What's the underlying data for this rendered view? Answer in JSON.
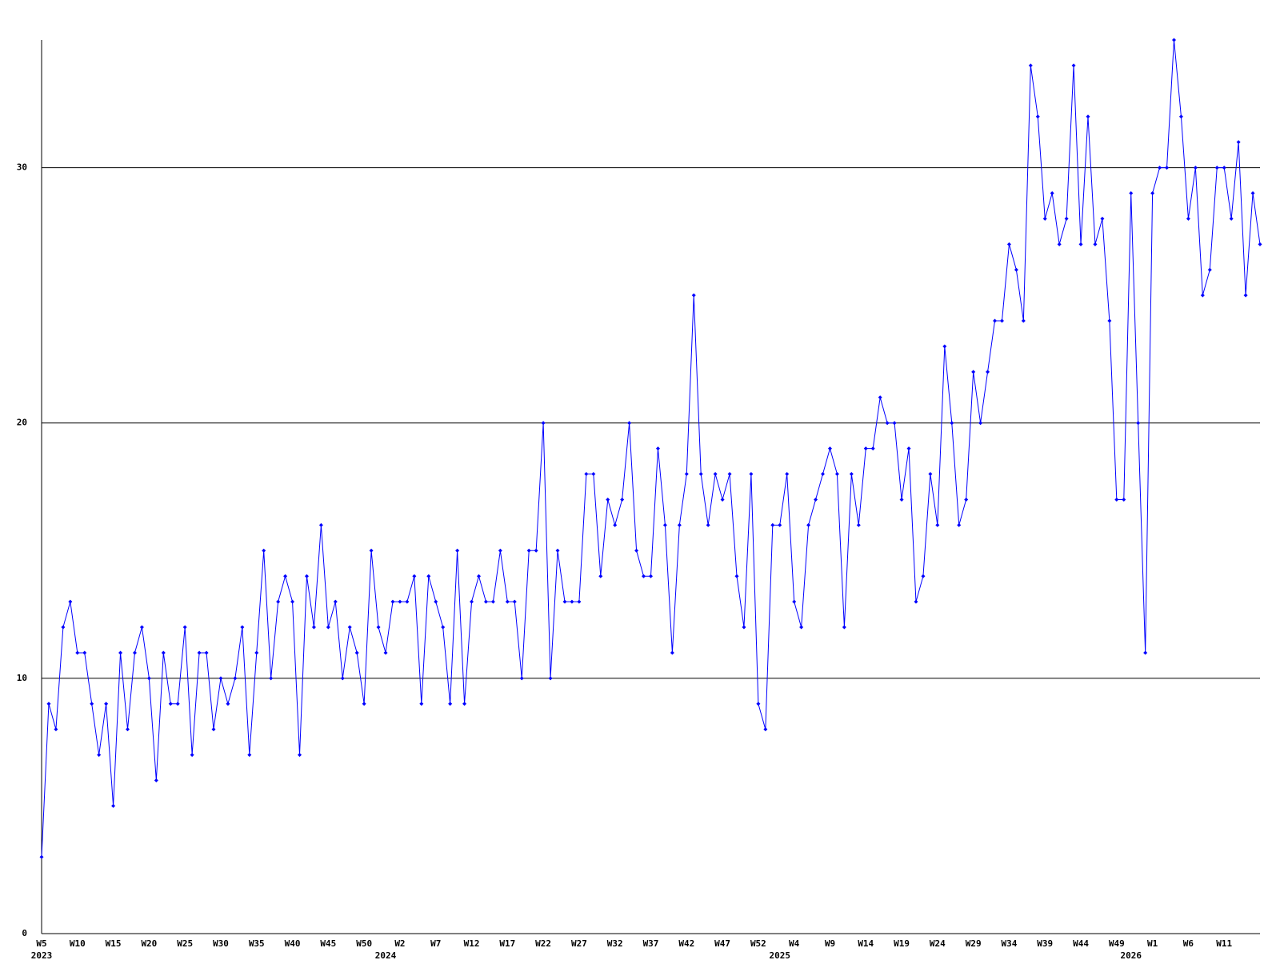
{
  "chart_data": {
    "type": "line",
    "categories": [
      "W5",
      null,
      null,
      null,
      null,
      "W10",
      null,
      null,
      null,
      null,
      "W15",
      null,
      null,
      null,
      null,
      "W20",
      null,
      null,
      null,
      null,
      "W25",
      null,
      null,
      null,
      null,
      "W30",
      null,
      null,
      null,
      null,
      "W35",
      null,
      null,
      null,
      null,
      "W40",
      null,
      null,
      null,
      null,
      "W45",
      null,
      null,
      null,
      null,
      "W50",
      null,
      null,
      null,
      null,
      "W2",
      null,
      null,
      null,
      null,
      "W7",
      null,
      null,
      null,
      null,
      "W12",
      null,
      null,
      null,
      null,
      "W17",
      null,
      null,
      null,
      null,
      "W22",
      null,
      null,
      null,
      null,
      "W27",
      null,
      null,
      null,
      null,
      "W32",
      null,
      null,
      null,
      null,
      "W37",
      null,
      null,
      null,
      null,
      "W42",
      null,
      null,
      null,
      null,
      "W47",
      null,
      null,
      null,
      null,
      "W52",
      null,
      null,
      null,
      null,
      "W4",
      null,
      null,
      null,
      null,
      "W9",
      null,
      null,
      null,
      null,
      "W14",
      null,
      null,
      null,
      null,
      "W19",
      null,
      null,
      null,
      null,
      "W24",
      null,
      null,
      null,
      null,
      "W29",
      null,
      null,
      null,
      null,
      "W34",
      null,
      null,
      null,
      null,
      "W39",
      null,
      null,
      null,
      null,
      "W44",
      null,
      null,
      null,
      null,
      "W49",
      null,
      null,
      null,
      null,
      "W1",
      null,
      null,
      null,
      null,
      "W6",
      null,
      null,
      null,
      null,
      "W11",
      null,
      null,
      null,
      null,
      null
    ],
    "year_labels": [
      "2023",
      null,
      null,
      null,
      null,
      null,
      null,
      null,
      null,
      null,
      null,
      null,
      null,
      null,
      null,
      null,
      null,
      null,
      null,
      null,
      null,
      null,
      null,
      null,
      null,
      null,
      null,
      null,
      null,
      null,
      null,
      null,
      null,
      null,
      null,
      null,
      null,
      null,
      null,
      null,
      null,
      null,
      null,
      null,
      null,
      null,
      null,
      null,
      "2024",
      null,
      null,
      null,
      null,
      null,
      null,
      null,
      null,
      null,
      null,
      null,
      null,
      null,
      null,
      null,
      null,
      null,
      null,
      null,
      null,
      null,
      null,
      null,
      null,
      null,
      null,
      null,
      null,
      null,
      null,
      null,
      null,
      null,
      null,
      null,
      null,
      null,
      null,
      null,
      null,
      null,
      null,
      null,
      null,
      null,
      null,
      null,
      null,
      null,
      null,
      null,
      null,
      null,
      null,
      "2025",
      null,
      null,
      null,
      null,
      null,
      null,
      null,
      null,
      null,
      null,
      null,
      null,
      null,
      null,
      null,
      null,
      null,
      null,
      null,
      null,
      null,
      null,
      null,
      null,
      null,
      null,
      null,
      null,
      null,
      null,
      null,
      null,
      null,
      null,
      null,
      null,
      null,
      null,
      null,
      null,
      null,
      null,
      null,
      null,
      null,
      null,
      null,
      null,
      "2026",
      null,
      null,
      null,
      null,
      null,
      null,
      null,
      null,
      null,
      null,
      null,
      null,
      null,
      null,
      null
    ],
    "series": [
      {
        "color": "#0000ff",
        "values": [
          3,
          9,
          8,
          12,
          13,
          11,
          11,
          9,
          7,
          9,
          5,
          11,
          8,
          11,
          12,
          10,
          6,
          11,
          9,
          9,
          12,
          7,
          11,
          11,
          8,
          10,
          9,
          10,
          12,
          7,
          11,
          15,
          10,
          13,
          14,
          13,
          7,
          14,
          12,
          16,
          12,
          13,
          10,
          12,
          11,
          9,
          15,
          12,
          11,
          13,
          13,
          13,
          14,
          9,
          14,
          13,
          12,
          9,
          15,
          9,
          13,
          14,
          13,
          13,
          15,
          13,
          13,
          10,
          15,
          15,
          20,
          10,
          15,
          13,
          13,
          13,
          18,
          18,
          14,
          17,
          16,
          17,
          20,
          15,
          14,
          14,
          19,
          16,
          11,
          16,
          18,
          25,
          18,
          16,
          18,
          17,
          18,
          14,
          12,
          18,
          9,
          8,
          16,
          16,
          18,
          13,
          12,
          16,
          17,
          18,
          19,
          18,
          12,
          18,
          16,
          19,
          19,
          21,
          20,
          20,
          17,
          19,
          13,
          14,
          18,
          16,
          23,
          20,
          16,
          17,
          22,
          20,
          22,
          24,
          24,
          27,
          26,
          24,
          34,
          32,
          28,
          29,
          27,
          28,
          34,
          27,
          32,
          27,
          28,
          24,
          17,
          17,
          29,
          20,
          11,
          29,
          30,
          30,
          35,
          32,
          28,
          30,
          25,
          26,
          30,
          30,
          28,
          31,
          25,
          29,
          27
        ]
      }
    ],
    "ylim": [
      0,
      35
    ],
    "yticks": [
      0,
      10,
      20,
      30
    ],
    "grid": true
  }
}
